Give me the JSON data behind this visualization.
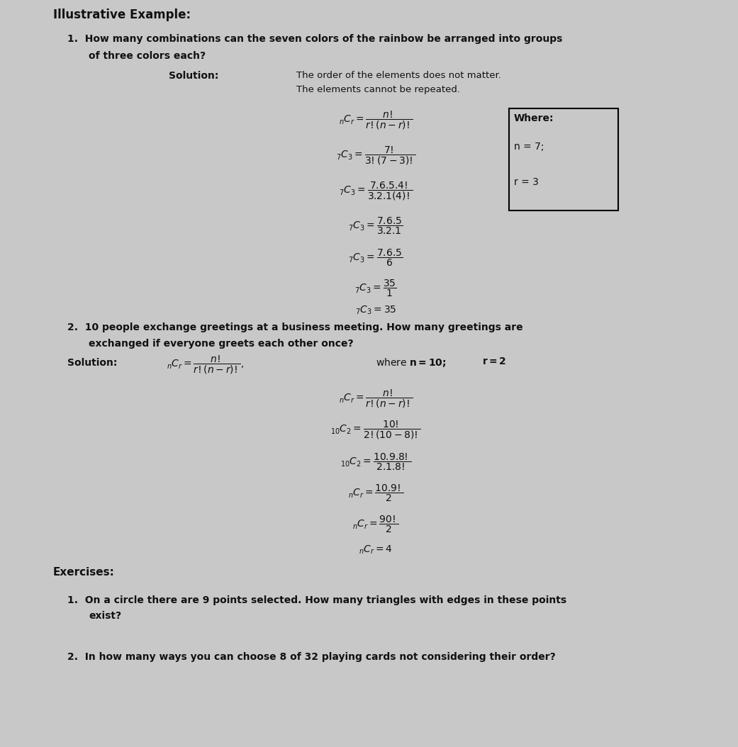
{
  "background_color": "#c8c8c8",
  "text_color": "#111111",
  "title": "Illustrative Example:",
  "q1_line1": "1.  How many combinations can the seven colors of the rainbow be arranged into groups",
  "q1_line2": "    of three colors each?",
  "solution_label": "Solution:",
  "sol1_text1": "The order of the elements does not matter.",
  "sol1_text2": "The elements cannot be repeated.",
  "where_label": "Where:",
  "where_n": "n = 7;",
  "where_r": "r = 3",
  "q2_line1": "2.  10 people exchange greetings at a business meeting. How many greetings are",
  "q2_line2": "    exchanged if everyone greets each other once?",
  "sol2_label": "Solution:",
  "exercises_label": "Exercises:",
  "ex1_line1": "1.  On a circle there are 9 points selected. How many triangles with edges in these points",
  "ex1_line2": "    exist?",
  "ex2_line1": "2.  In how many ways you can choose 8 of 32 playing cards not considering their order?"
}
